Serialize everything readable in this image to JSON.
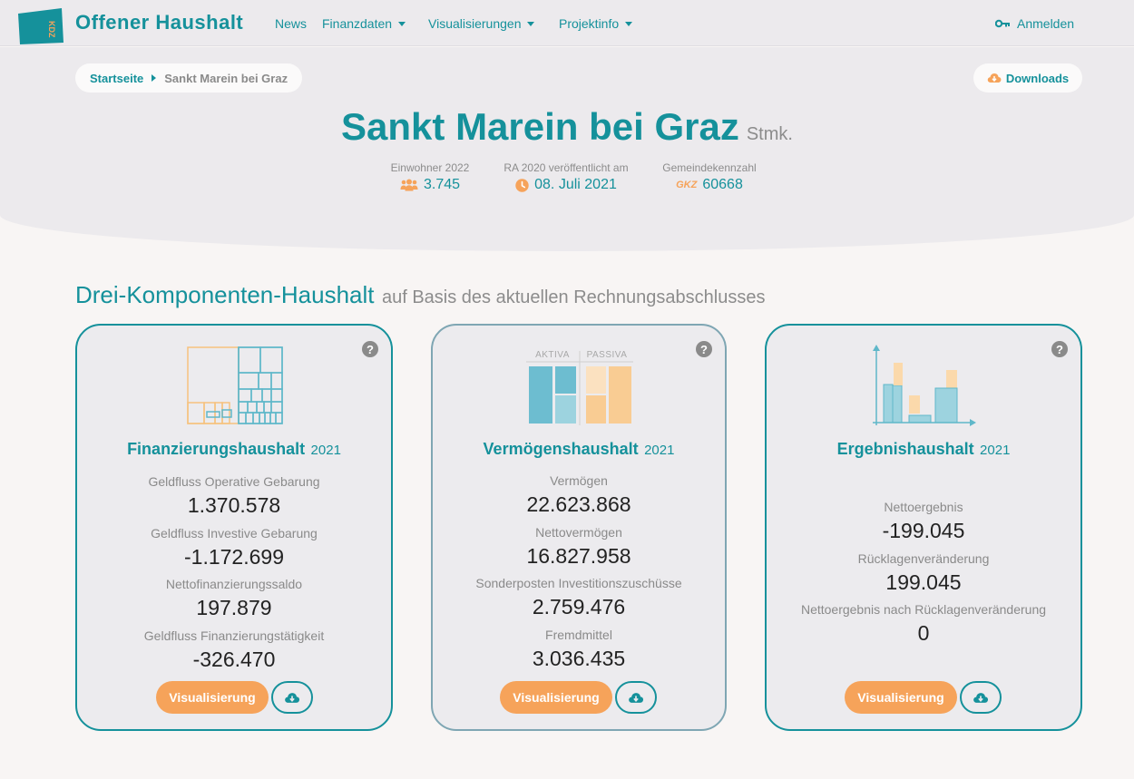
{
  "navbar": {
    "brand": "Offener Haushalt",
    "logo_text": "KDZ",
    "items": [
      {
        "label": "News",
        "dropdown": false
      },
      {
        "label": "Finanzdaten",
        "dropdown": true
      },
      {
        "label": "Visualisierungen",
        "dropdown": true
      },
      {
        "label": "Projektinfo",
        "dropdown": true
      }
    ],
    "login_label": "Anmelden"
  },
  "breadcrumb": {
    "home": "Startseite",
    "current": "Sankt Marein bei Graz"
  },
  "downloads_label": "Downloads",
  "title": {
    "main": "Sankt Marein bei Graz",
    "state": "Stmk."
  },
  "meta": {
    "population": {
      "label": "Einwohner 2022",
      "value": "3.745"
    },
    "published": {
      "label": "RA 2020 veröffentlicht am",
      "value": "08. Juli 2021"
    },
    "gkz": {
      "label": "Gemeindekennzahl",
      "prefix": "GKZ",
      "value": "60668"
    }
  },
  "section": {
    "title": "Drei-Komponenten-Haushalt",
    "subtitle": "auf Basis des aktuellen Rechnungsabschlusses"
  },
  "cards": [
    {
      "title": "Finanzierungshaushalt",
      "year": "2021",
      "kpis": [
        {
          "label": "Geldfluss Operative Gebarung",
          "value": "1.370.578"
        },
        {
          "label": "Geldfluss Investive Gebarung",
          "value": "-1.172.699"
        },
        {
          "label": "Nettofinanzierungssaldo",
          "value": "197.879"
        },
        {
          "label": "Geldfluss Finanzierungstätigkeit",
          "value": "-326.470"
        }
      ],
      "viz_label": "Visualisierung"
    },
    {
      "title": "Vermögenshaushalt",
      "year": "2021",
      "illus_labels": {
        "left": "AKTIVA",
        "right": "PASSIVA"
      },
      "kpis": [
        {
          "label": "Vermögen",
          "value": "22.623.868"
        },
        {
          "label": "Nettovermögen",
          "value": "16.827.958"
        },
        {
          "label": "Sonderposten Investitionszuschüsse",
          "value": "2.759.476"
        },
        {
          "label": "Fremdmittel",
          "value": "3.036.435"
        }
      ],
      "viz_label": "Visualisierung"
    },
    {
      "title": "Ergebnishaushalt",
      "year": "2021",
      "kpis": [
        {
          "label": "Nettoergebnis",
          "value": "-199.045"
        },
        {
          "label": "Rücklagenveränderung",
          "value": "199.045"
        },
        {
          "label": "Nettoergebnis nach Rücklagenveränderung",
          "value": "0"
        }
      ],
      "viz_label": "Visualisierung"
    }
  ],
  "help_glyph": "?",
  "colors": {
    "primary": "#15919b",
    "accent": "#f6a35a",
    "muted": "#8c8c8c",
    "hero_bg": "#eceaed"
  },
  "icons": {
    "logo": "kdz-logo-icon",
    "login": "key-icon",
    "downloads": "cloud-download-icon",
    "population": "users-icon",
    "published": "clock-icon",
    "help": "question-circle-icon",
    "card_download": "cloud-download-icon"
  }
}
